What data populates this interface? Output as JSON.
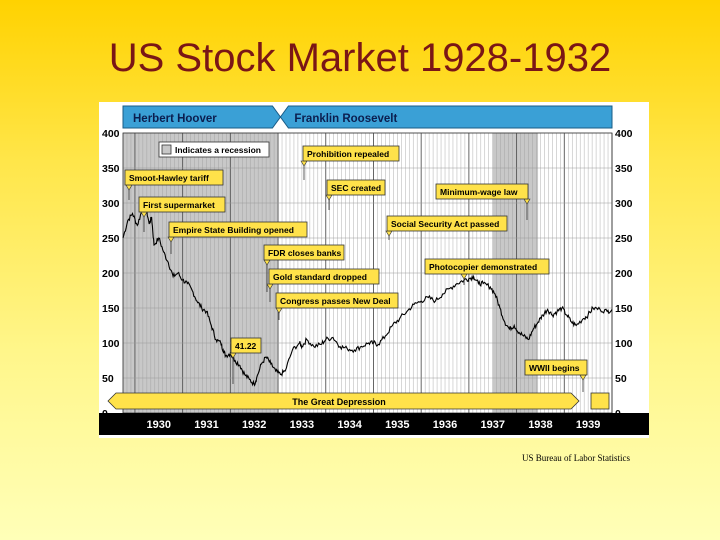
{
  "slide": {
    "title": "US Stock Market 1928-1932",
    "source": "US Bureau of Labor Statistics"
  },
  "colors": {
    "title": "#7a1616",
    "banner": "#3aa0d6",
    "recession": "#c8c8c8",
    "callout": "#ffe24a",
    "line": "#000000",
    "axis_bar": "#000000"
  },
  "chart_data": {
    "type": "line",
    "xlim": [
      1929.75,
      1940.0
    ],
    "ylim": [
      0,
      400
    ],
    "y_ticks": [
      "0",
      "50",
      "100",
      "150",
      "200",
      "250",
      "300",
      "350",
      "400"
    ],
    "x_tick_labels": [
      "1930",
      "1931",
      "1932",
      "1933",
      "1934",
      "1935",
      "1936",
      "1937",
      "1938",
      "1939"
    ],
    "presidents": [
      {
        "name": "Herbert Hoover",
        "start": 1929.75,
        "end": 1933.05
      },
      {
        "name": "Franklin Roosevelt",
        "start": 1933.05,
        "end": 1940.0
      }
    ],
    "recessions": [
      {
        "start": 1929.75,
        "end": 1933.0
      },
      {
        "start": 1937.5,
        "end": 1938.45
      }
    ],
    "legend": {
      "label": "Indicates a recession",
      "position": "top-left"
    },
    "series": [
      {
        "points": [
          [
            1929.75,
            250
          ],
          [
            1929.85,
            275
          ],
          [
            1929.95,
            285
          ],
          [
            1930.05,
            268
          ],
          [
            1930.15,
            290
          ],
          [
            1930.22,
            298
          ],
          [
            1930.3,
            270
          ],
          [
            1930.35,
            280
          ],
          [
            1930.4,
            240
          ],
          [
            1930.5,
            250
          ],
          [
            1930.6,
            230
          ],
          [
            1930.7,
            215
          ],
          [
            1930.8,
            195
          ],
          [
            1930.9,
            200
          ],
          [
            1931.0,
            190
          ],
          [
            1931.1,
            185
          ],
          [
            1931.2,
            175
          ],
          [
            1931.3,
            160
          ],
          [
            1931.4,
            150
          ],
          [
            1931.5,
            145
          ],
          [
            1931.6,
            125
          ],
          [
            1931.7,
            105
          ],
          [
            1931.8,
            100
          ],
          [
            1931.85,
            90
          ],
          [
            1931.9,
            82
          ],
          [
            1932.0,
            85
          ],
          [
            1932.1,
            75
          ],
          [
            1932.2,
            68
          ],
          [
            1932.3,
            55
          ],
          [
            1932.4,
            48
          ],
          [
            1932.5,
            41
          ],
          [
            1932.55,
            50
          ],
          [
            1932.65,
            70
          ],
          [
            1932.75,
            80
          ],
          [
            1932.85,
            70
          ],
          [
            1932.95,
            60
          ],
          [
            1933.05,
            55
          ],
          [
            1933.15,
            60
          ],
          [
            1933.3,
            90
          ],
          [
            1933.45,
            100
          ],
          [
            1933.5,
            95
          ],
          [
            1933.6,
            105
          ],
          [
            1933.75,
            95
          ],
          [
            1933.9,
            98
          ],
          [
            1934.0,
            105
          ],
          [
            1934.15,
            108
          ],
          [
            1934.3,
            95
          ],
          [
            1934.45,
            92
          ],
          [
            1934.6,
            90
          ],
          [
            1934.75,
            95
          ],
          [
            1934.9,
            100
          ],
          [
            1935.0,
            100
          ],
          [
            1935.1,
            98
          ],
          [
            1935.25,
            110
          ],
          [
            1935.4,
            125
          ],
          [
            1935.55,
            135
          ],
          [
            1935.7,
            145
          ],
          [
            1935.85,
            155
          ],
          [
            1936.0,
            160
          ],
          [
            1936.15,
            165
          ],
          [
            1936.3,
            160
          ],
          [
            1936.45,
            170
          ],
          [
            1936.6,
            178
          ],
          [
            1936.75,
            185
          ],
          [
            1936.9,
            190
          ],
          [
            1937.0,
            192
          ],
          [
            1937.1,
            195
          ],
          [
            1937.2,
            185
          ],
          [
            1937.3,
            185
          ],
          [
            1937.45,
            180
          ],
          [
            1937.55,
            170
          ],
          [
            1937.65,
            150
          ],
          [
            1937.75,
            130
          ],
          [
            1937.85,
            120
          ],
          [
            1937.95,
            125
          ],
          [
            1938.05,
            115
          ],
          [
            1938.15,
            110
          ],
          [
            1938.25,
            105
          ],
          [
            1938.35,
            120
          ],
          [
            1938.45,
            130
          ],
          [
            1938.55,
            140
          ],
          [
            1938.65,
            148
          ],
          [
            1938.75,
            140
          ],
          [
            1938.85,
            145
          ],
          [
            1938.95,
            150
          ],
          [
            1939.05,
            140
          ],
          [
            1939.15,
            130
          ],
          [
            1939.25,
            125
          ],
          [
            1939.4,
            135
          ],
          [
            1939.5,
            140
          ],
          [
            1939.6,
            150
          ],
          [
            1939.75,
            148
          ],
          [
            1939.9,
            145
          ],
          [
            1940.0,
            148
          ]
        ]
      }
    ],
    "annotations": [
      {
        "text": "Prohibition repealed"
      },
      {
        "text": "Smoot-Hawley tariff"
      },
      {
        "text": "SEC created"
      },
      {
        "text": "Minimum-wage law"
      },
      {
        "text": "First supermarket"
      },
      {
        "text": "Empire State Building opened"
      },
      {
        "text": "Social Security Act passed"
      },
      {
        "text": "FDR closes banks"
      },
      {
        "text": "Photocopier demonstrated"
      },
      {
        "text": "Gold standard dropped"
      },
      {
        "text": "Congress passes New Deal"
      },
      {
        "text": "41.22"
      },
      {
        "text": "WWII begins"
      },
      {
        "text": "The Great Depression"
      }
    ]
  }
}
